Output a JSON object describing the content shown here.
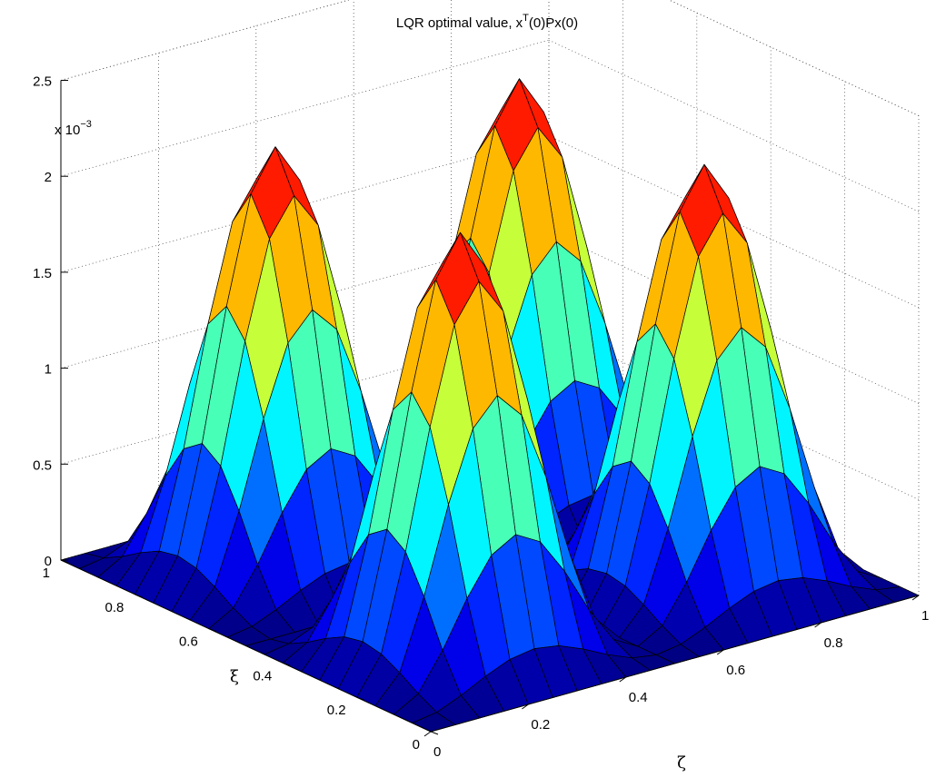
{
  "chart_data": {
    "type": "surface",
    "title": "LQR optimal value, x",
    "title_sup": "T",
    "title_tail": "(0)Px(0)",
    "xlabel": "ξ",
    "ylabel": "ζ",
    "zlabel": "",
    "exponent_prefix": "x 10",
    "exponent_power": "−3",
    "xlim": [
      0,
      1
    ],
    "ylim": [
      0,
      1
    ],
    "zlim": [
      0,
      2.5
    ],
    "x_ticks": [
      {
        "value": 0,
        "label": "0"
      },
      {
        "value": 0.2,
        "label": "0.2"
      },
      {
        "value": 0.4,
        "label": "0.4"
      },
      {
        "value": 0.6,
        "label": "0.6"
      },
      {
        "value": 0.8,
        "label": "0.8"
      },
      {
        "value": 1,
        "label": "1"
      }
    ],
    "y_ticks": [
      {
        "value": 0,
        "label": "0"
      },
      {
        "value": 0.2,
        "label": "0.2"
      },
      {
        "value": 0.4,
        "label": "0.4"
      },
      {
        "value": 0.6,
        "label": "0.6"
      },
      {
        "value": 0.8,
        "label": "0.8"
      },
      {
        "value": 1,
        "label": "1"
      }
    ],
    "z_ticks": [
      {
        "value": 0,
        "label": "0"
      },
      {
        "value": 0.5,
        "label": "0.5"
      },
      {
        "value": 1,
        "label": "1"
      },
      {
        "value": 1.5,
        "label": "1.5"
      },
      {
        "value": 2,
        "label": "2"
      },
      {
        "value": 2.5,
        "label": "2.5"
      }
    ],
    "grid": true,
    "colormap": "jet",
    "mesh_size": 21,
    "peaks": [
      {
        "x": 0.75,
        "y": 0.25,
        "z": 2.2
      },
      {
        "x": 0.75,
        "y": 0.75,
        "z": 2.35
      },
      {
        "x": 0.25,
        "y": 0.25,
        "z": 2.0
      },
      {
        "x": 0.25,
        "y": 0.75,
        "z": 2.05
      }
    ],
    "surface_formula": "z ≈ 2.2e-3 · sin²(2πξ) · sin²(2πζ)"
  }
}
